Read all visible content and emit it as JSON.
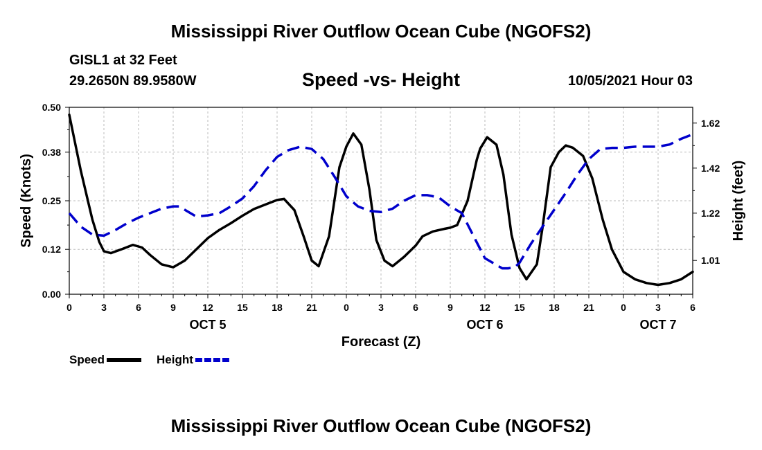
{
  "header": {
    "title": "Mississippi River Outflow Ocean Cube (NGOFS2)",
    "station": "GISL1 at 32 Feet",
    "coords": "29.2650N  89.9580W",
    "chart_title": "Speed -vs- Height",
    "timestamp": "10/05/2021 Hour 03",
    "footer_title": "Mississippi River Outflow Ocean Cube (NGOFS2)"
  },
  "chart_data": {
    "type": "line",
    "title": "Speed -vs- Height",
    "xlabel": "Forecast (Z)",
    "ylabel": "Speed (Knots)",
    "y2label": "Height (feet)",
    "xlim": [
      0,
      54
    ],
    "ylim": [
      0,
      0.5
    ],
    "y2lim": [
      0.86,
      1.69
    ],
    "x_ticks": [
      0,
      3,
      6,
      9,
      12,
      15,
      18,
      21,
      24,
      27,
      30,
      33,
      36,
      39,
      42,
      45,
      48,
      51,
      54
    ],
    "x_tick_labels": [
      "0",
      "3",
      "6",
      "9",
      "12",
      "15",
      "18",
      "21",
      "0",
      "3",
      "6",
      "9",
      "12",
      "15",
      "18",
      "21",
      "0",
      "3",
      "6"
    ],
    "day_labels": [
      {
        "x": 12,
        "label": "OCT 5"
      },
      {
        "x": 36,
        "label": "OCT 6"
      },
      {
        "x": 51,
        "label": "OCT 7"
      }
    ],
    "y_ticks": [
      0.0,
      0.12,
      0.25,
      0.38,
      0.5
    ],
    "y_tick_labels": [
      "0.00",
      "0.12",
      "0.25",
      "0.38",
      "0.50"
    ],
    "y2_ticks": [
      1.01,
      1.22,
      1.42,
      1.62
    ],
    "y2_tick_labels": [
      "1.01",
      "1.22",
      "1.42",
      "1.62"
    ],
    "grid": true,
    "series": [
      {
        "name": "Speed",
        "axis": "left",
        "color": "#000000",
        "dashed": false,
        "x": [
          0,
          1,
          2,
          2.6,
          3,
          3.6,
          4.5,
          5.5,
          6.3,
          7,
          8,
          9,
          10,
          11,
          12,
          13,
          14,
          15,
          16,
          17,
          18,
          18.6,
          19.5,
          20.3,
          21,
          21.6,
          22.5,
          23.4,
          24,
          24.6,
          25.3,
          26,
          26.6,
          27.3,
          28,
          29,
          30,
          30.6,
          31.5,
          32.5,
          33,
          33.6,
          34.5,
          35.3,
          35.6,
          36.2,
          37,
          37.6,
          38.3,
          39,
          39.6,
          40.5,
          41,
          41.7,
          42.4,
          43,
          43.6,
          44.5,
          45.3,
          46.2,
          47,
          48,
          49,
          50,
          51,
          52,
          53,
          54
        ],
        "values": [
          0.48,
          0.33,
          0.2,
          0.14,
          0.115,
          0.11,
          0.12,
          0.132,
          0.125,
          0.105,
          0.08,
          0.072,
          0.09,
          0.12,
          0.15,
          0.172,
          0.19,
          0.21,
          0.228,
          0.24,
          0.252,
          0.255,
          0.225,
          0.155,
          0.09,
          0.075,
          0.155,
          0.34,
          0.395,
          0.43,
          0.4,
          0.28,
          0.145,
          0.09,
          0.075,
          0.1,
          0.13,
          0.155,
          0.168,
          0.175,
          0.178,
          0.185,
          0.25,
          0.36,
          0.39,
          0.42,
          0.4,
          0.32,
          0.16,
          0.07,
          0.04,
          0.08,
          0.18,
          0.34,
          0.38,
          0.398,
          0.392,
          0.37,
          0.31,
          0.2,
          0.12,
          0.06,
          0.04,
          0.03,
          0.025,
          0.03,
          0.04,
          0.06
        ]
      },
      {
        "name": "Height",
        "axis": "right",
        "color": "#0000cc",
        "dashed": true,
        "x": [
          0,
          1,
          2,
          3,
          4,
          5,
          6,
          7,
          8,
          9,
          9.5,
          10,
          11,
          12,
          13,
          14,
          15,
          16,
          17,
          18,
          19,
          20,
          21,
          22,
          23,
          24,
          25,
          26,
          27,
          28,
          29,
          30,
          31,
          32,
          33,
          34,
          35,
          36,
          37,
          37.5,
          38,
          38.6,
          39,
          40,
          41,
          42,
          43,
          44,
          45,
          46,
          47,
          48,
          49,
          50,
          51,
          52,
          53,
          54
        ],
        "values": [
          1.22,
          1.16,
          1.125,
          1.12,
          1.145,
          1.175,
          1.2,
          1.22,
          1.24,
          1.25,
          1.25,
          1.235,
          1.205,
          1.21,
          1.22,
          1.25,
          1.285,
          1.34,
          1.41,
          1.47,
          1.5,
          1.515,
          1.505,
          1.46,
          1.38,
          1.295,
          1.25,
          1.23,
          1.225,
          1.24,
          1.275,
          1.3,
          1.3,
          1.29,
          1.25,
          1.22,
          1.12,
          1.02,
          0.99,
          0.975,
          0.975,
          0.98,
          1.0,
          1.085,
          1.16,
          1.235,
          1.31,
          1.39,
          1.46,
          1.505,
          1.51,
          1.51,
          1.515,
          1.515,
          1.515,
          1.525,
          1.55,
          1.57
        ]
      }
    ],
    "legend": [
      {
        "label": "Speed",
        "color": "#000000",
        "dashed": false
      },
      {
        "label": "Height",
        "color": "#0000cc",
        "dashed": true
      }
    ],
    "legend_position": "bottom-left"
  }
}
